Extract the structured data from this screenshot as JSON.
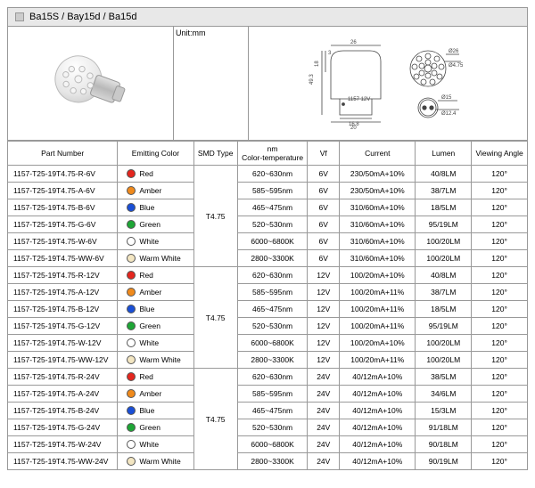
{
  "header": {
    "title": "Ba15S / Bay15d / Ba15d"
  },
  "unit_label": "Unit:mm",
  "diagram": {
    "dims": [
      "26",
      "Ø26",
      "Ø4.75",
      "Ø15",
      "Ø12.4",
      "49.3",
      "18",
      "3",
      "20",
      "16.8"
    ],
    "marking": "1157 12V"
  },
  "columns": [
    "Part Number",
    "Emitting Color",
    "SMD Type",
    "nm\nColor-temperature",
    "Vf",
    "Current",
    "Lumen",
    "Viewing Angle"
  ],
  "colors": {
    "Red": "#e4261e",
    "Amber": "#f08a1c",
    "Blue": "#1a4fd6",
    "Green": "#1ea636",
    "White": "#ffffff",
    "Warm White": "#f3e6c2"
  },
  "groups": [
    {
      "smd": "T4.75",
      "rows": [
        {
          "pn": "1157-T25-19T4.75-R-6V",
          "color": "Red",
          "nm": "620~630nm",
          "vf": "6V",
          "cur": "230/50mA+10%",
          "lm": "40/8LM",
          "va": "120°"
        },
        {
          "pn": "1157-T25-19T4.75-A-6V",
          "color": "Amber",
          "nm": "585~595nm",
          "vf": "6V",
          "cur": "230/50mA+10%",
          "lm": "38/7LM",
          "va": "120°"
        },
        {
          "pn": "1157-T25-19T4.75-B-6V",
          "color": "Blue",
          "nm": "465~475nm",
          "vf": "6V",
          "cur": "310/60mA+10%",
          "lm": "18/5LM",
          "va": "120°"
        },
        {
          "pn": "1157-T25-19T4.75-G-6V",
          "color": "Green",
          "nm": "520~530nm",
          "vf": "6V",
          "cur": "310/60mA+10%",
          "lm": "95/19LM",
          "va": "120°"
        },
        {
          "pn": "1157-T25-19T4.75-W-6V",
          "color": "White",
          "nm": "6000~6800K",
          "vf": "6V",
          "cur": "310/60mA+10%",
          "lm": "100/20LM",
          "va": "120°"
        },
        {
          "pn": "1157-T25-19T4.75-WW-6V",
          "color": "Warm White",
          "nm": "2800~3300K",
          "vf": "6V",
          "cur": "310/60mA+10%",
          "lm": "100/20LM",
          "va": "120°"
        }
      ]
    },
    {
      "smd": "T4.75",
      "rows": [
        {
          "pn": "1157-T25-19T4.75-R-12V",
          "color": "Red",
          "nm": "620~630nm",
          "vf": "12V",
          "cur": "100/20mA+10%",
          "lm": "40/8LM",
          "va": "120°"
        },
        {
          "pn": "1157-T25-19T4.75-A-12V",
          "color": "Amber",
          "nm": "585~595nm",
          "vf": "12V",
          "cur": "100/20mA+11%",
          "lm": "38/7LM",
          "va": "120°"
        },
        {
          "pn": "1157-T25-19T4.75-B-12V",
          "color": "Blue",
          "nm": "465~475nm",
          "vf": "12V",
          "cur": "100/20mA+11%",
          "lm": "18/5LM",
          "va": "120°"
        },
        {
          "pn": "1157-T25-19T4.75-G-12V",
          "color": "Green",
          "nm": "520~530nm",
          "vf": "12V",
          "cur": "100/20mA+11%",
          "lm": "95/19LM",
          "va": "120°"
        },
        {
          "pn": "1157-T25-19T4.75-W-12V",
          "color": "White",
          "nm": "6000~6800K",
          "vf": "12V",
          "cur": "100/20mA+10%",
          "lm": "100/20LM",
          "va": "120°"
        },
        {
          "pn": "1157-T25-19T4.75-WW-12V",
          "color": "Warm White",
          "nm": "2800~3300K",
          "vf": "12V",
          "cur": "100/20mA+11%",
          "lm": "100/20LM",
          "va": "120°"
        }
      ]
    },
    {
      "smd": "T4.75",
      "rows": [
        {
          "pn": "1157-T25-19T4.75-R-24V",
          "color": "Red",
          "nm": "620~630nm",
          "vf": "24V",
          "cur": "40/12mA+10%",
          "lm": "38/5LM",
          "va": "120°"
        },
        {
          "pn": "1157-T25-19T4.75-A-24V",
          "color": "Amber",
          "nm": "585~595nm",
          "vf": "24V",
          "cur": "40/12mA+10%",
          "lm": "34/6LM",
          "va": "120°"
        },
        {
          "pn": "1157-T25-19T4.75-B-24V",
          "color": "Blue",
          "nm": "465~475nm",
          "vf": "24V",
          "cur": "40/12mA+10%",
          "lm": "15/3LM",
          "va": "120°"
        },
        {
          "pn": "1157-T25-19T4.75-G-24V",
          "color": "Green",
          "nm": "520~530nm",
          "vf": "24V",
          "cur": "40/12mA+10%",
          "lm": "91/18LM",
          "va": "120°"
        },
        {
          "pn": "1157-T25-19T4.75-W-24V",
          "color": "White",
          "nm": "6000~6800K",
          "vf": "24V",
          "cur": "40/12mA+10%",
          "lm": "90/18LM",
          "va": "120°"
        },
        {
          "pn": "1157-T25-19T4.75-WW-24V",
          "color": "Warm White",
          "nm": "2800~3300K",
          "vf": "24V",
          "cur": "40/12mA+10%",
          "lm": "90/19LM",
          "va": "120°"
        }
      ]
    }
  ]
}
